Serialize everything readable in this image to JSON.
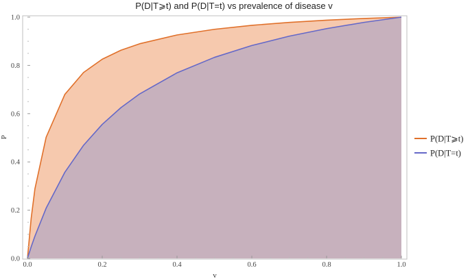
{
  "chart_data": {
    "type": "area",
    "title": "P(D|T⩾t) and P(D|T=t) vs prevalence of disease v",
    "xlabel": "v",
    "ylabel": "P",
    "xlim": [
      0,
      1
    ],
    "ylim": [
      0,
      1
    ],
    "x_ticks": [
      "0.0",
      "0.2",
      "0.4",
      "0.6",
      "0.8",
      "1.0"
    ],
    "y_ticks": [
      "0.0",
      "0.2",
      "0.4",
      "0.6",
      "0.8",
      "1.0"
    ],
    "grid": false,
    "legend_position": "right",
    "x": [
      0,
      0.01,
      0.02,
      0.05,
      0.1,
      0.15,
      0.2,
      0.25,
      0.3,
      0.4,
      0.5,
      0.6,
      0.7,
      0.8,
      0.9,
      1.0
    ],
    "series": [
      {
        "name": "P(D|T⩾t)",
        "color": "#E0702A",
        "fill": "#F6C9AE",
        "values": [
          0,
          0.1667,
          0.2885,
          0.5024,
          0.6799,
          0.7705,
          0.8257,
          0.8629,
          0.8897,
          0.9261,
          0.9496,
          0.9661,
          0.9782,
          0.9874,
          0.9945,
          1.0
        ]
      },
      {
        "name": "P(D|T=t)",
        "color": "#6468C8",
        "fill": "#C7B1BD",
        "values": [
          0,
          0.0484,
          0.0923,
          0.2083,
          0.3571,
          0.4688,
          0.5556,
          0.625,
          0.6818,
          0.7692,
          0.8333,
          0.8824,
          0.9211,
          0.9524,
          0.9783,
          1.0
        ]
      }
    ]
  }
}
